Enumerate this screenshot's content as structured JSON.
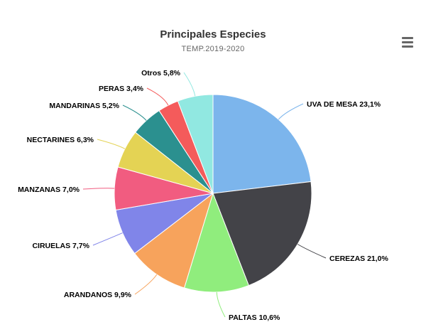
{
  "header": {
    "title": "Principales Especies",
    "subtitle": "TEMP.2019-2020"
  },
  "toolbar": {
    "menu_icon": "hamburger-menu-icon"
  },
  "chart_data": {
    "type": "pie",
    "title": "Principales Especies",
    "subtitle": "TEMP.2019-2020",
    "unit": "%",
    "legend": "none",
    "slices": [
      {
        "label": "UVA DE MESA 23,1%",
        "name": "UVA DE MESA",
        "value": 23.1,
        "color": "#7cb5ec"
      },
      {
        "label": "CEREZAS 21,0%",
        "name": "CEREZAS",
        "value": 21.0,
        "color": "#434348"
      },
      {
        "label": "PALTAS 10,6%",
        "name": "PALTAS",
        "value": 10.6,
        "color": "#90ed7d"
      },
      {
        "label": "ARANDANOS 9,9%",
        "name": "ARANDANOS",
        "value": 9.9,
        "color": "#f7a35c"
      },
      {
        "label": "CIRUELAS 7,7%",
        "name": "CIRUELAS",
        "value": 7.7,
        "color": "#8085e9"
      },
      {
        "label": "MANZANAS 7,0%",
        "name": "MANZANAS",
        "value": 7.0,
        "color": "#f15c80"
      },
      {
        "label": "NECTARINES 6,3%",
        "name": "NECTARINES",
        "value": 6.3,
        "color": "#e4d354"
      },
      {
        "label": "MANDARINAS 5,2%",
        "name": "MANDARINAS",
        "value": 5.2,
        "color": "#2b908f"
      },
      {
        "label": "PERAS 3,4%",
        "name": "PERAS",
        "value": 3.4,
        "color": "#f45b5b"
      },
      {
        "label": "Otros 5,8%",
        "name": "Otros",
        "value": 5.8,
        "color": "#91e8e1"
      }
    ]
  }
}
